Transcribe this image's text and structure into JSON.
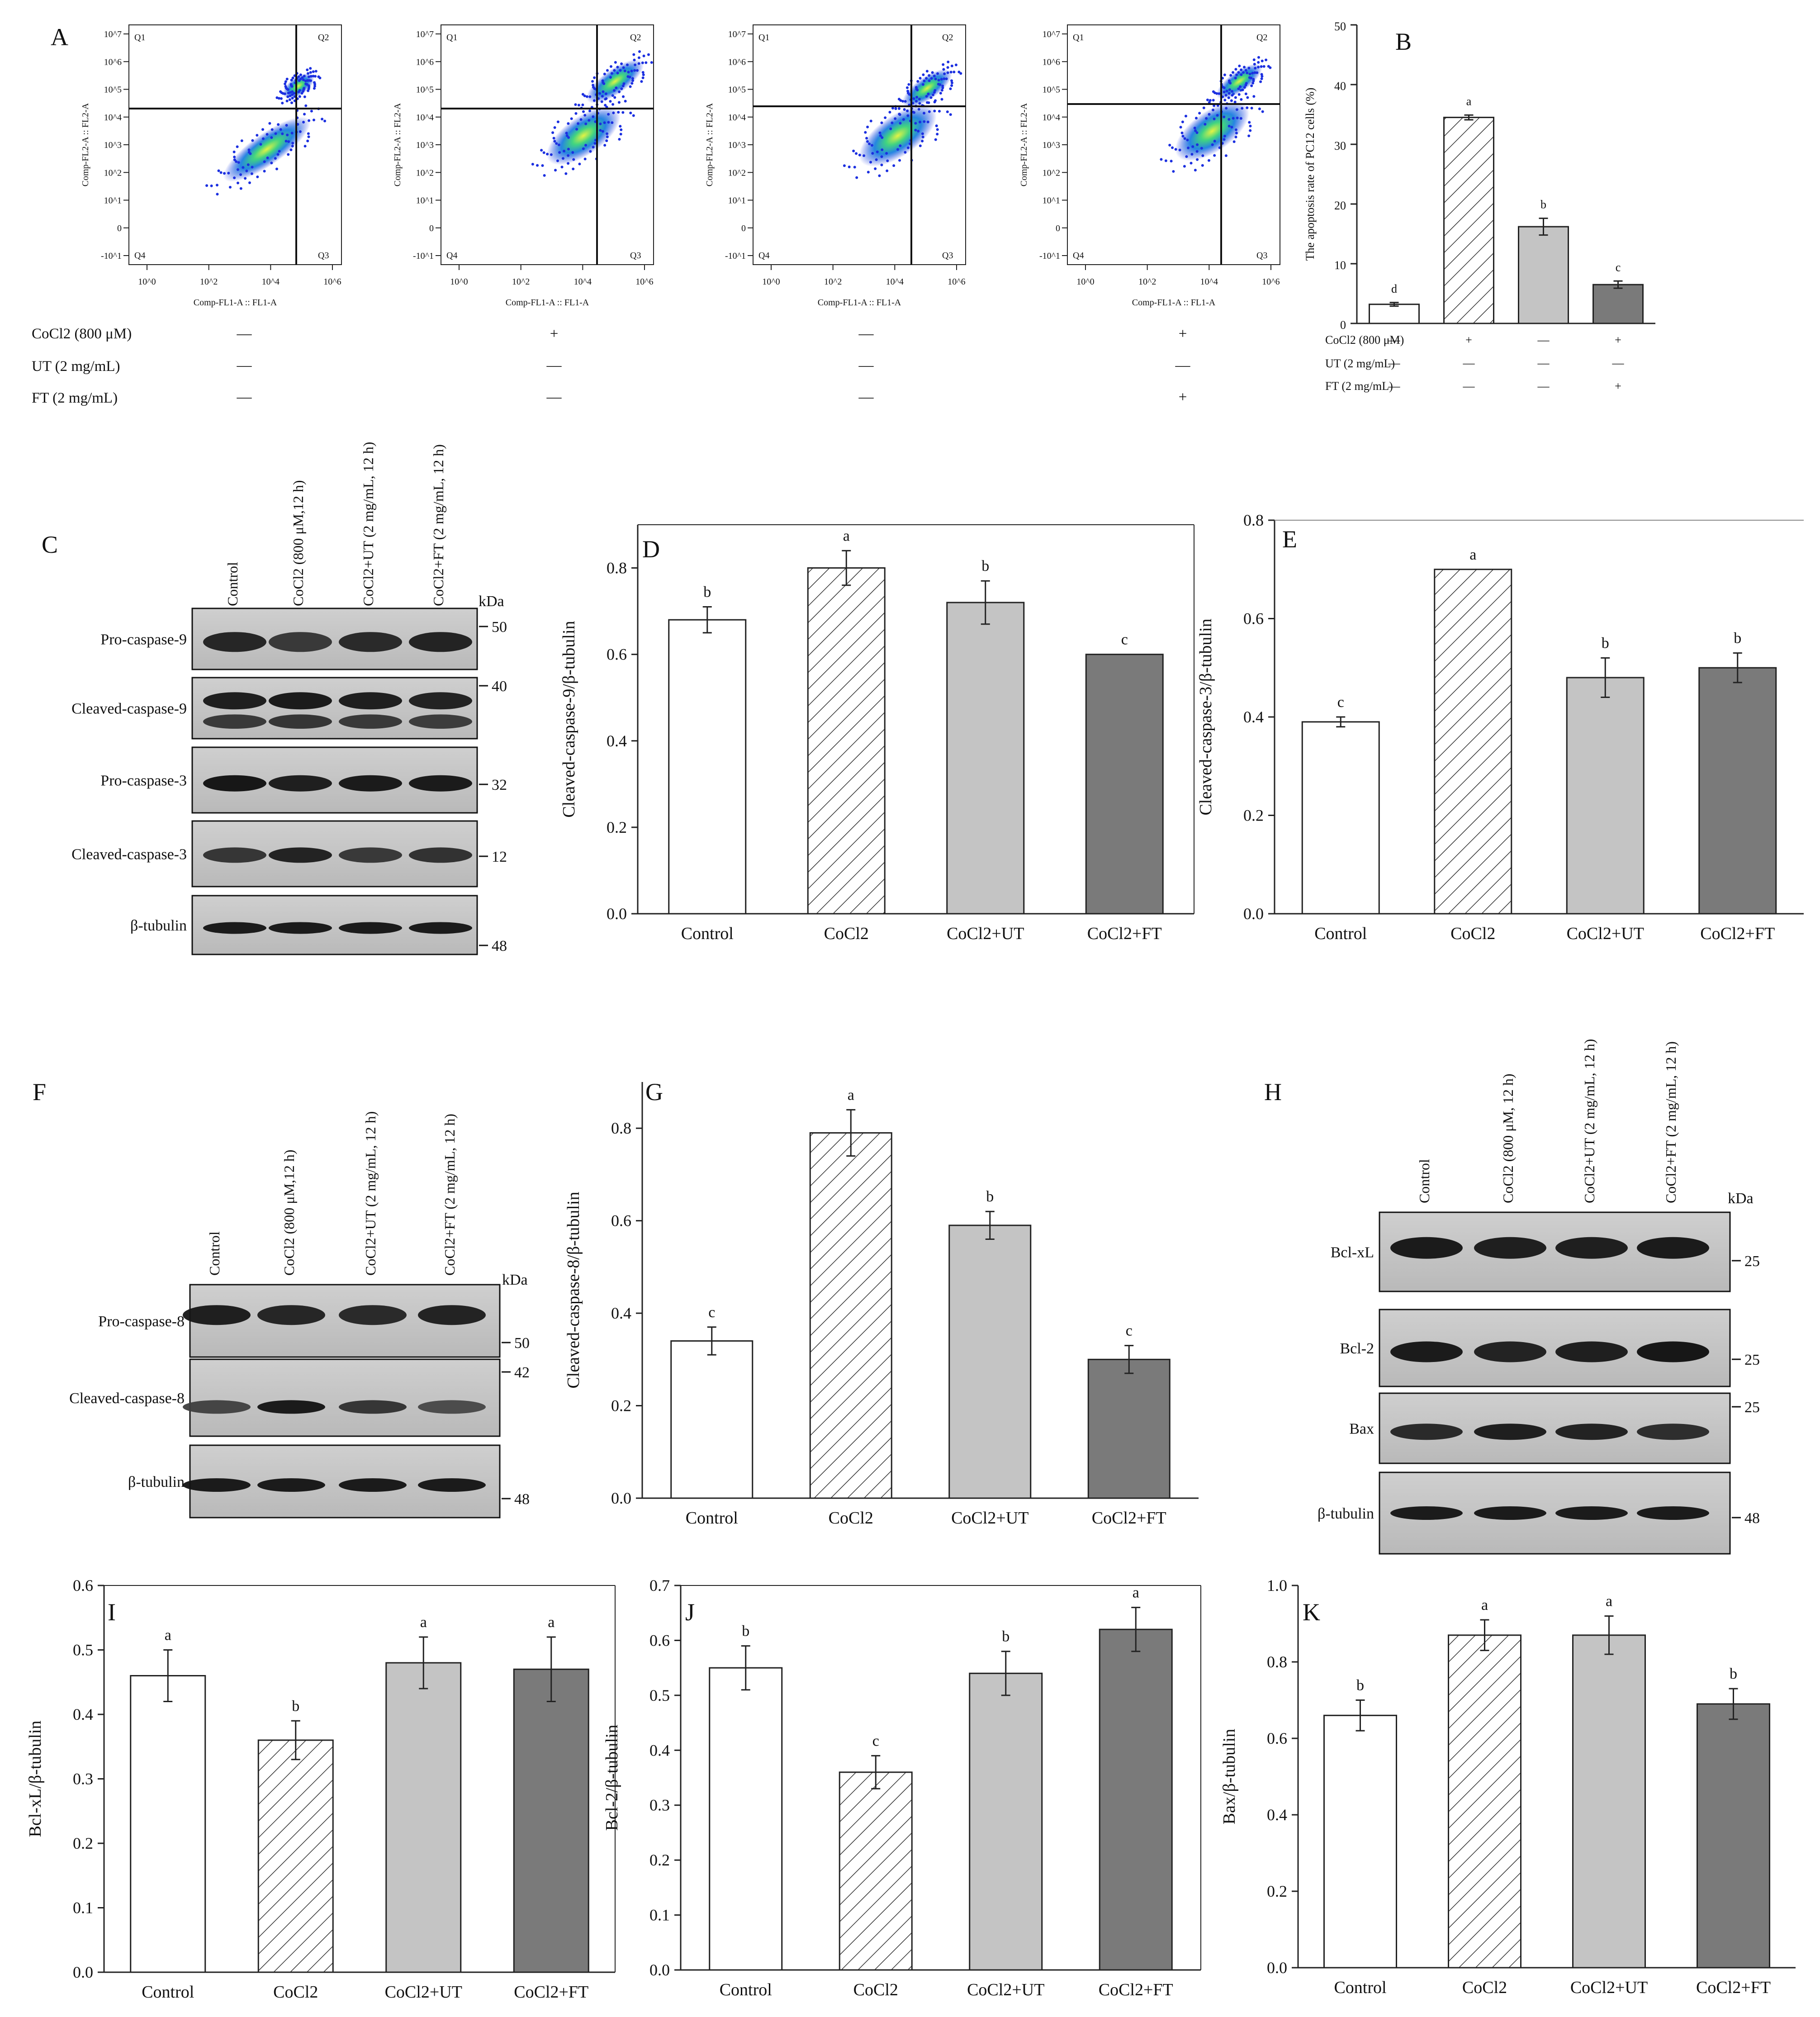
{
  "panels": {
    "A": {
      "label": "A"
    },
    "B": {
      "label": "B"
    },
    "C": {
      "label": "C"
    },
    "D": {
      "label": "D"
    },
    "E": {
      "label": "E"
    },
    "F": {
      "label": "F"
    },
    "G": {
      "label": "G"
    },
    "H": {
      "label": "H"
    },
    "I": {
      "label": "I"
    },
    "J": {
      "label": "J"
    },
    "K": {
      "label": "K"
    }
  },
  "flow": {
    "quadrants": [
      "Q1",
      "Q2",
      "Q3",
      "Q4"
    ],
    "x_axis_label": "Comp-FL1-A :: FL1-A",
    "y_axis_label": "Comp-FL2-A :: FL2-A",
    "tick_labels": [
      "10^0",
      "10^2",
      "10^4",
      "10^6"
    ],
    "y_tick_labels": [
      "-10^1",
      "0",
      "10^1",
      "10^2",
      "10^3",
      "10^4",
      "10^5",
      "10^6",
      "10^7"
    ]
  },
  "conditions": {
    "rows": [
      {
        "label": "CoCl2 (800 μM)",
        "values": [
          "—",
          "+",
          "—",
          "+"
        ]
      },
      {
        "label": "UT (2 mg/mL)",
        "values": [
          "—",
          "—",
          "—",
          "—"
        ]
      },
      {
        "label": "FT (2 mg/mL)",
        "values": [
          "—",
          "—",
          "—",
          "+"
        ]
      }
    ]
  },
  "blots": {
    "C": {
      "lanes": [
        "Control",
        "CoCl2 (800 μM,12 h)",
        "CoCl2+UT (2 mg/mL, 12 h)",
        "CoCl2+FT (2 mg/mL, 12 h)"
      ],
      "kda_label": "kDa",
      "bands": [
        {
          "label": "Pro-caspase-9",
          "kda": "50"
        },
        {
          "label": "Cleaved-caspase-9",
          "kda": "40"
        },
        {
          "label": "Pro-caspase-3",
          "kda": "32"
        },
        {
          "label": "Cleaved-caspase-3",
          "kda": "12"
        },
        {
          "label": "β-tubulin",
          "kda": "48"
        }
      ]
    },
    "F": {
      "lanes": [
        "Control",
        "CoCl2 (800 μM,12 h)",
        "CoCl2+UT (2 mg/mL, 12 h)",
        "CoCl2+FT (2 mg/mL, 12 h)"
      ],
      "kda_label": "kDa",
      "bands": [
        {
          "label": "Pro-caspase-8",
          "kda": "50"
        },
        {
          "label": "Cleaved-caspase-8",
          "kda": "42"
        },
        {
          "label": "β-tubulin",
          "kda": "48"
        }
      ]
    },
    "H": {
      "lanes": [
        "Control",
        "CoCl2 (800 μM, 12 h)",
        "CoCl2+UT (2 mg/mL, 12 h)",
        "CoCl2+FT (2 mg/mL, 12 h)"
      ],
      "kda_label": "kDa",
      "bands": [
        {
          "label": "Bcl-xL",
          "kda": "25"
        },
        {
          "label": "Bcl-2",
          "kda": "25"
        },
        {
          "label": "Bax",
          "kda": "25"
        },
        {
          "label": "β-tubulin",
          "kda": "48"
        }
      ]
    }
  },
  "chart_data": [
    {
      "id": "B",
      "type": "bar",
      "title": "",
      "ylabel": "The apoptosis rate of PC12 cells (%)",
      "xlabel": "",
      "categories": [
        "",
        "",
        "",
        ""
      ],
      "values": [
        3.2,
        34.5,
        16.2,
        6.5
      ],
      "errors": [
        0.3,
        0.4,
        1.4,
        0.6
      ],
      "letters": [
        "d",
        "a",
        "b",
        "c"
      ],
      "ylim": [
        0,
        50
      ],
      "yticks": [
        0,
        10,
        20,
        30,
        40,
        50
      ]
    },
    {
      "id": "D",
      "type": "bar",
      "title": "",
      "ylabel": "Cleaved-caspase-9/β-tubulin",
      "xlabel": "",
      "categories": [
        "Control",
        "CoCl2",
        "CoCl2+UT",
        "CoCl2+FT"
      ],
      "values": [
        0.68,
        0.8,
        0.72,
        0.6
      ],
      "errors": [
        0.03,
        0.04,
        0.05,
        0.0
      ],
      "letters": [
        "b",
        "a",
        "b",
        "c"
      ],
      "ylim": [
        0,
        0.9
      ],
      "yticks": [
        0.0,
        0.2,
        0.4,
        0.6,
        0.8
      ]
    },
    {
      "id": "E",
      "type": "bar",
      "title": "",
      "ylabel": "Cleaved-caspase-3/β-tubulin",
      "xlabel": "",
      "categories": [
        "Control",
        "CoCl2",
        "CoCl2+UT",
        "CoCl2+FT"
      ],
      "values": [
        0.39,
        0.7,
        0.48,
        0.5
      ],
      "errors": [
        0.01,
        0.0,
        0.04,
        0.03
      ],
      "letters": [
        "c",
        "a",
        "b",
        "b"
      ],
      "ylim": [
        0,
        0.8
      ],
      "yticks": [
        0.0,
        0.2,
        0.4,
        0.6,
        0.8
      ]
    },
    {
      "id": "G",
      "type": "bar",
      "title": "",
      "ylabel": "Cleaved-caspase-8/β-tubulin",
      "xlabel": "",
      "categories": [
        "Control",
        "CoCl2",
        "CoCl2+UT",
        "CoCl2+FT"
      ],
      "values": [
        0.34,
        0.79,
        0.59,
        0.3
      ],
      "errors": [
        0.03,
        0.05,
        0.03,
        0.03
      ],
      "letters": [
        "c",
        "a",
        "b",
        "c"
      ],
      "ylim": [
        0,
        0.9
      ],
      "yticks": [
        0.0,
        0.2,
        0.4,
        0.6,
        0.8
      ]
    },
    {
      "id": "I",
      "type": "bar",
      "title": "",
      "ylabel": "Bcl-xL/β-tubulin",
      "xlabel": "",
      "categories": [
        "Control",
        "CoCl2",
        "CoCl2+UT",
        "CoCl2+FT"
      ],
      "values": [
        0.46,
        0.36,
        0.48,
        0.47
      ],
      "errors": [
        0.04,
        0.03,
        0.04,
        0.05
      ],
      "letters": [
        "a",
        "b",
        "a",
        "a"
      ],
      "ylim": [
        0,
        0.6
      ],
      "yticks": [
        0.0,
        0.1,
        0.2,
        0.3,
        0.4,
        0.5,
        0.6
      ]
    },
    {
      "id": "J",
      "type": "bar",
      "title": "",
      "ylabel": "Bcl-2/β-tubulin",
      "xlabel": "",
      "categories": [
        "Control",
        "CoCl2",
        "CoCl2+UT",
        "CoCl2+FT"
      ],
      "values": [
        0.55,
        0.36,
        0.54,
        0.62
      ],
      "errors": [
        0.04,
        0.03,
        0.04,
        0.04
      ],
      "letters": [
        "b",
        "c",
        "b",
        "a"
      ],
      "ylim": [
        0,
        0.7
      ],
      "yticks": [
        0.0,
        0.1,
        0.2,
        0.3,
        0.4,
        0.5,
        0.6,
        0.7
      ]
    },
    {
      "id": "K",
      "type": "bar",
      "title": "",
      "ylabel": "Bax/β-tubulin",
      "xlabel": "",
      "categories": [
        "Control",
        "CoCl2",
        "CoCl2+UT",
        "CoCl2+FT"
      ],
      "values": [
        0.66,
        0.87,
        0.87,
        0.69
      ],
      "errors": [
        0.04,
        0.04,
        0.05,
        0.04
      ],
      "letters": [
        "b",
        "a",
        "a",
        "b"
      ],
      "ylim": [
        0,
        1.0
      ],
      "yticks": [
        0.0,
        0.2,
        0.4,
        0.6,
        0.8,
        1.0
      ]
    }
  ]
}
